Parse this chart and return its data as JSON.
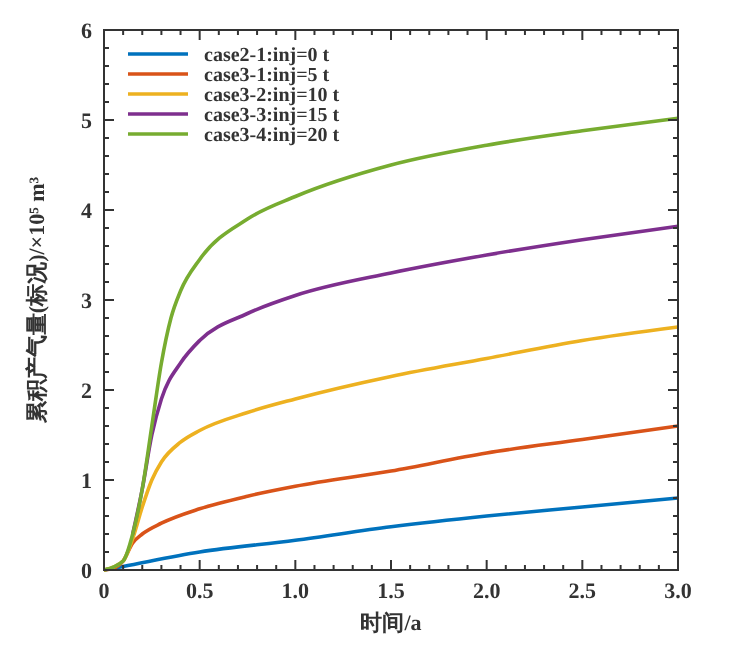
{
  "chart_data": {
    "type": "line",
    "xlabel": "时间/a",
    "ylabel": "累积产气量(标况)/×10⁵ m³",
    "xlim": [
      0,
      3
    ],
    "ylim": [
      0,
      6
    ],
    "xticks": [
      {
        "value": 0,
        "label": "0"
      },
      {
        "value": 0.1,
        "label": null
      },
      {
        "value": 0.2,
        "label": null
      },
      {
        "value": 0.3,
        "label": null
      },
      {
        "value": 0.4,
        "label": null
      },
      {
        "value": 0.5,
        "label": "0.5"
      },
      {
        "value": 0.6,
        "label": null
      },
      {
        "value": 0.7,
        "label": null
      },
      {
        "value": 0.8,
        "label": null
      },
      {
        "value": 0.9,
        "label": null
      },
      {
        "value": 1,
        "label": "1.0"
      },
      {
        "value": 1.1,
        "label": null
      },
      {
        "value": 1.2,
        "label": null
      },
      {
        "value": 1.3,
        "label": null
      },
      {
        "value": 1.4,
        "label": null
      },
      {
        "value": 1.5,
        "label": "1.5"
      },
      {
        "value": 1.6,
        "label": null
      },
      {
        "value": 1.7,
        "label": null
      },
      {
        "value": 1.8,
        "label": null
      },
      {
        "value": 1.9,
        "label": null
      },
      {
        "value": 2,
        "label": "2.0"
      },
      {
        "value": 2.1,
        "label": null
      },
      {
        "value": 2.2,
        "label": null
      },
      {
        "value": 2.3,
        "label": null
      },
      {
        "value": 2.4,
        "label": null
      },
      {
        "value": 2.5,
        "label": "2.5"
      },
      {
        "value": 2.6,
        "label": null
      },
      {
        "value": 2.7,
        "label": null
      },
      {
        "value": 2.8,
        "label": null
      },
      {
        "value": 2.9,
        "label": null
      },
      {
        "value": 3,
        "label": "3.0"
      }
    ],
    "yticks": [
      0,
      {
        "value": 0.2,
        "label": null
      },
      {
        "value": 0.4,
        "label": null
      },
      {
        "value": 0.6,
        "label": null
      },
      {
        "value": 0.8,
        "label": null
      },
      1,
      {
        "value": 1.2,
        "label": null
      },
      {
        "value": 1.4,
        "label": null
      },
      {
        "value": 1.6,
        "label": null
      },
      {
        "value": 1.8,
        "label": null
      },
      2,
      {
        "value": 2.2,
        "label": null
      },
      {
        "value": 2.4,
        "label": null
      },
      {
        "value": 2.6,
        "label": null
      },
      {
        "value": 2.8,
        "label": null
      },
      3,
      {
        "value": 3.2,
        "label": null
      },
      {
        "value": 3.4,
        "label": null
      },
      {
        "value": 3.6,
        "label": null
      },
      {
        "value": 3.8,
        "label": null
      },
      4,
      {
        "value": 4.2,
        "label": null
      },
      {
        "value": 4.4,
        "label": null
      },
      {
        "value": 4.6,
        "label": null
      },
      {
        "value": 4.8,
        "label": null
      },
      5,
      {
        "value": 5.2,
        "label": null
      },
      {
        "value": 5.4,
        "label": null
      },
      {
        "value": 5.6,
        "label": null
      },
      {
        "value": 5.8,
        "label": null
      },
      6
    ],
    "grid": false,
    "legend": "top left",
    "line_style": "solid",
    "marker": "none",
    "series": [
      {
        "name": "case2-1:inj=0 t",
        "color": "#0072bd",
        "x": [
          0,
          0.1,
          0.5,
          1,
          1.5,
          2,
          2.5,
          3
        ],
        "values": [
          0,
          0.04,
          0.2,
          0.33,
          0.48,
          0.6,
          0.7,
          0.8
        ]
      },
      {
        "name": "case3-1:inj=5 t",
        "color": "#d95319",
        "x": [
          0,
          0.05,
          0.1,
          0.15,
          0.2,
          0.3,
          0.5,
          0.75,
          1,
          1.5,
          2,
          2.5,
          3
        ],
        "values": [
          0,
          0.02,
          0.1,
          0.3,
          0.4,
          0.52,
          0.68,
          0.82,
          0.93,
          1.1,
          1.3,
          1.45,
          1.6
        ]
      },
      {
        "name": "case3-2:inj=10 t",
        "color": "#edb120",
        "x": [
          0,
          0.1,
          0.15,
          0.2,
          0.25,
          0.3,
          0.4,
          0.5,
          0.75,
          1,
          1.5,
          2,
          2.5,
          3
        ],
        "values": [
          0,
          0.1,
          0.35,
          0.7,
          1.0,
          1.2,
          1.42,
          1.55,
          1.75,
          1.9,
          2.15,
          2.35,
          2.55,
          2.7
        ]
      },
      {
        "name": "case3-3:inj=15 t",
        "color": "#7e2f8e",
        "x": [
          0.15,
          0.2,
          0.25,
          0.3,
          0.4,
          0.5,
          0.75,
          1,
          1.5,
          2,
          2.5,
          3
        ],
        "values": [
          0.4,
          0.9,
          1.5,
          1.9,
          2.3,
          2.55,
          2.85,
          3.05,
          3.3,
          3.5,
          3.67,
          3.82
        ]
      },
      {
        "name": "case3-4:inj=20 t",
        "color": "#77ac30",
        "x": [
          0,
          0.1,
          0.15,
          0.2,
          0.25,
          0.3,
          0.35,
          0.4,
          0.5,
          0.75,
          1,
          1.5,
          2,
          2.5,
          3
        ],
        "values": [
          0,
          0.1,
          0.4,
          0.9,
          1.6,
          2.3,
          2.8,
          3.1,
          3.45,
          3.9,
          4.15,
          4.5,
          4.72,
          4.88,
          5.02
        ]
      }
    ]
  }
}
